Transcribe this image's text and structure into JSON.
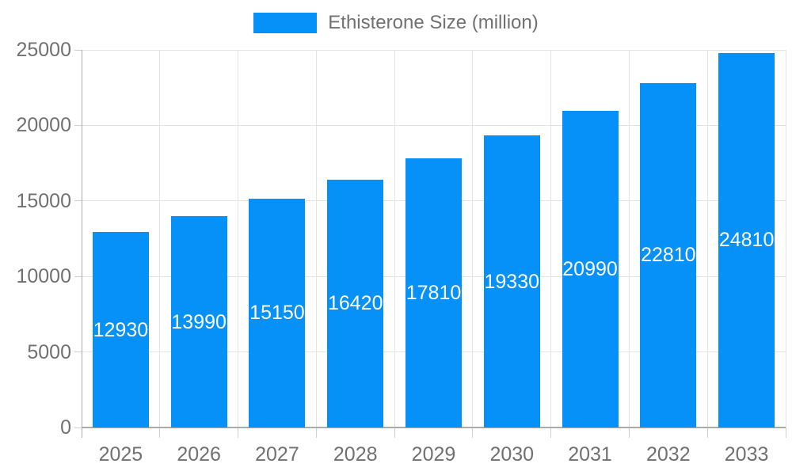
{
  "chart_data": {
    "type": "bar",
    "title": "",
    "legend": {
      "label": "Ethisterone Size (million)",
      "position": "top"
    },
    "categories": [
      "2025",
      "2026",
      "2027",
      "2028",
      "2029",
      "2030",
      "2031",
      "2032",
      "2033"
    ],
    "series": [
      {
        "name": "Ethisterone Size (million)",
        "values": [
          12930,
          13990,
          15150,
          16420,
          17810,
          19330,
          20990,
          22810,
          24810
        ]
      }
    ],
    "bar_labels": [
      "12930",
      "13990",
      "15150",
      "16420",
      "17810",
      "19330",
      "20990",
      "22810",
      "24810"
    ],
    "xlabel": "",
    "ylabel": "",
    "ylim": [
      0,
      25000
    ],
    "y_ticks": [
      0,
      5000,
      10000,
      15000,
      20000,
      25000
    ],
    "grid": true,
    "colors": {
      "bar": "#0691f8",
      "bar_label": "#ffffff",
      "axis_text": "#717171",
      "grid_line": "#e3e3e3",
      "axis_line": "#ababab",
      "background": "#ffffff"
    }
  }
}
